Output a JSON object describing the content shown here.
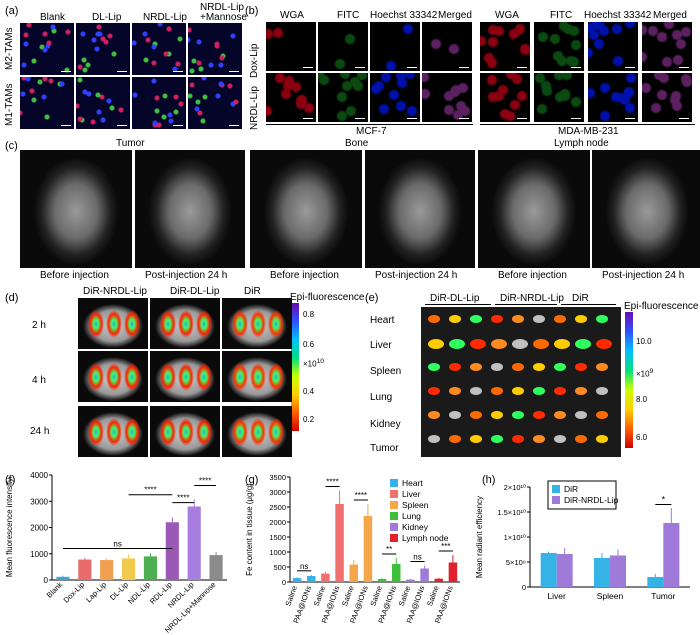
{
  "panel_a": {
    "label": "(a)",
    "columns": [
      "Blank",
      "DL-Lip",
      "NRDL-Lip",
      "NRDL-Lip\n+Mannose"
    ],
    "col1": "Blank",
    "col2": "DL-Lip",
    "col3": "NRDL-Lip",
    "col4a": "NRDL-Lip",
    "col4b": "+Mannose",
    "rows": [
      "M2-TAMs",
      "M1-TAMs"
    ]
  },
  "panel_b": {
    "label": "(b)",
    "col1": "WGA",
    "col2": "FITC",
    "col3": "Hoechst 33342",
    "col4": "Merged",
    "rows": [
      "Dox-Lip",
      "NRDL-Lip"
    ],
    "groups": [
      "MCF-7",
      "MDA-MB-231"
    ]
  },
  "panel_c": {
    "label": "(c)",
    "sites": [
      "Tumor",
      "Bone",
      "Lymph node"
    ],
    "before": "Before injection",
    "post": "Post-injection 24 h"
  },
  "panel_d": {
    "label": "(d)",
    "cols": [
      "DiR-NRDL-Lip",
      "DiR-DL-Lip",
      "DiR"
    ],
    "rows": [
      "2 h",
      "4 h",
      "24 h"
    ],
    "scale_title": "Epi-fluorescence",
    "scale_ticks": [
      "0.8",
      "0.6",
      "0.4",
      "0.2"
    ],
    "scale_unit": "×10",
    "scale_exp": "10"
  },
  "panel_e": {
    "label": "(e)",
    "cols": [
      "DiR-DL-Lip",
      "DiR-NRDL-Lip",
      "DiR"
    ],
    "organs": [
      "Heart",
      "Liver",
      "Spleen",
      "Lung",
      "Kidney",
      "Tumor"
    ],
    "scale_title": "Epi-fluorescence",
    "scale_ticks": [
      "10.0",
      "8.0",
      "6.0"
    ],
    "scale_unit": "×10",
    "scale_exp": "9"
  },
  "chart_data": [
    {
      "panel": "(f)",
      "type": "bar",
      "ylabel": "Mean fluorescence intensity",
      "ylim": [
        0,
        4000
      ],
      "yticks": [
        "0",
        "1000",
        "2000",
        "3000",
        "4000"
      ],
      "categories": [
        "Blank",
        "Dox-Lip",
        "Lap-Lip",
        "DL-Lip",
        "NDL-Lip",
        "RDL-Lip",
        "NRDL-Lip",
        "NRDL-Lip+Mannose"
      ],
      "values": [
        120,
        780,
        760,
        820,
        900,
        2200,
        2800,
        950
      ],
      "errors": [
        40,
        60,
        50,
        150,
        130,
        180,
        280,
        120
      ],
      "colors": [
        "#3aa6dc",
        "#e96b6b",
        "#f0a050",
        "#f2c94c",
        "#4caf50",
        "#9b59b6",
        "#a77de0",
        "#8b8b8b"
      ],
      "significance": [
        {
          "text": "ns"
        },
        {
          "text": "****"
        },
        {
          "text": "****"
        },
        {
          "text": "****"
        }
      ]
    },
    {
      "panel": "(g)",
      "type": "bar",
      "ylabel": "Fe content in tissue (μg/g)",
      "ylim": [
        0,
        3500
      ],
      "yticks": [
        "0",
        "500",
        "1000",
        "1500",
        "2000",
        "2500",
        "3000",
        "3500"
      ],
      "groups": [
        "Heart",
        "Liver",
        "Spleen",
        "Lung",
        "Kidney",
        "Lymph node"
      ],
      "categories": [
        "Saline",
        "PAA@IONs",
        "Saline",
        "PAA@IONs",
        "Saline",
        "PAA@IONs",
        "Saline",
        "PAA@IONs",
        "Saline",
        "PAA@IONs",
        "Saline",
        "PAA@IONs"
      ],
      "values": [
        130,
        200,
        280,
        2600,
        580,
        2200,
        100,
        600,
        80,
        450,
        110,
        650
      ],
      "errors": [
        30,
        40,
        60,
        450,
        150,
        400,
        30,
        200,
        20,
        100,
        30,
        250
      ],
      "colors": [
        "#36b3e6",
        "#f07070",
        "#f5a54a",
        "#3cc03c",
        "#a07ad8",
        "#e0202a"
      ],
      "legend": [
        "Heart",
        "Liver",
        "Spleen",
        "Lung",
        "Kidney",
        "Lymph node"
      ],
      "significance": [
        "ns",
        "****",
        "****",
        "**",
        "ns",
        "***"
      ]
    },
    {
      "panel": "(h)",
      "type": "bar",
      "ylabel": "Mean radiant efficiency",
      "ylim": [
        0,
        20000000000.0
      ],
      "yticks": [
        "0",
        "5×10⁹",
        "1×10¹⁰",
        "1.5×10¹⁰",
        "2×10¹⁰"
      ],
      "categories": [
        "Liver",
        "Spleen",
        "Tumor"
      ],
      "series": [
        {
          "name": "DiR",
          "values": [
            6800000000.0,
            5800000000.0,
            2000000000.0
          ],
          "errors": [
            300000000.0,
            1000000000.0,
            600000000.0
          ],
          "color": "#36b3e6"
        },
        {
          "name": "DiR-NRDL-Lip",
          "values": [
            6600000000.0,
            6300000000.0,
            12800000000.0
          ],
          "errors": [
            1200000000.0,
            1200000000.0,
            3000000000.0
          ],
          "color": "#a07ad8"
        }
      ],
      "significance": [
        "*"
      ]
    }
  ]
}
